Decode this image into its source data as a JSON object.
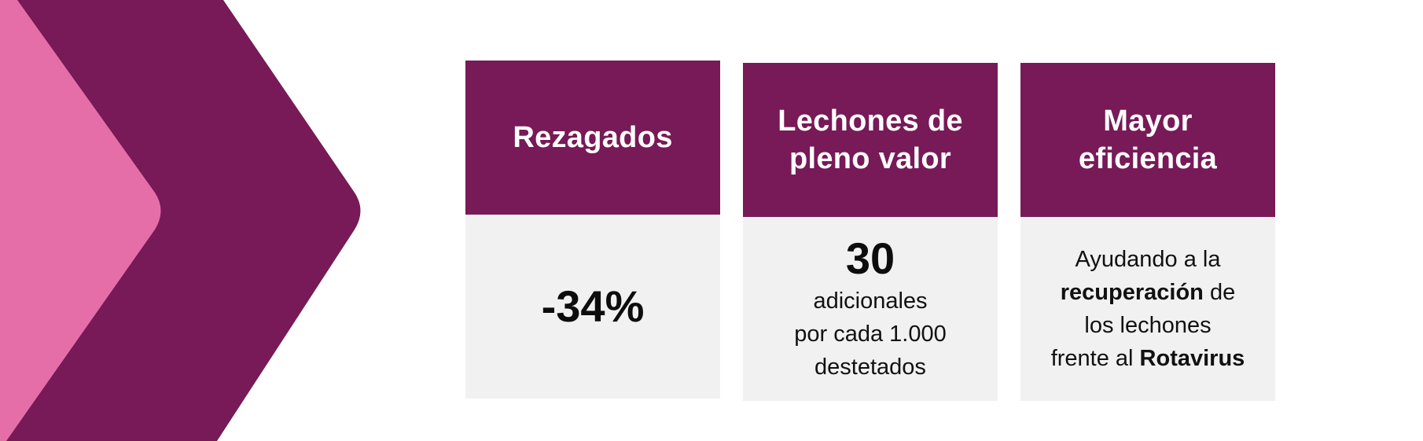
{
  "colors": {
    "pink": "#e56ea9",
    "purple": "#771a57",
    "card_body": "#f1f1f1",
    "text": "#111111"
  },
  "decor": {
    "chevron_pink_icon": "chevron-right-pink",
    "chevron_purple_icon": "chevron-right-purple"
  },
  "cards": [
    {
      "title": "Rezagados",
      "value": "-34%"
    },
    {
      "title_line1": "Lechones de",
      "title_line2": "pleno valor",
      "value": "30",
      "desc_line1": "adicionales",
      "desc_line2": "por cada 1.000",
      "desc_line3": "destetados"
    },
    {
      "title_line1": "Mayor",
      "title_line2": "eficiencia",
      "desc_line1": "Ayudando a la",
      "desc_bold1": "recuperación",
      "desc_after_bold1": " de",
      "desc_line3": "los lechones",
      "desc_before_bold2": "frente al ",
      "desc_bold2": "Rotavirus"
    }
  ]
}
